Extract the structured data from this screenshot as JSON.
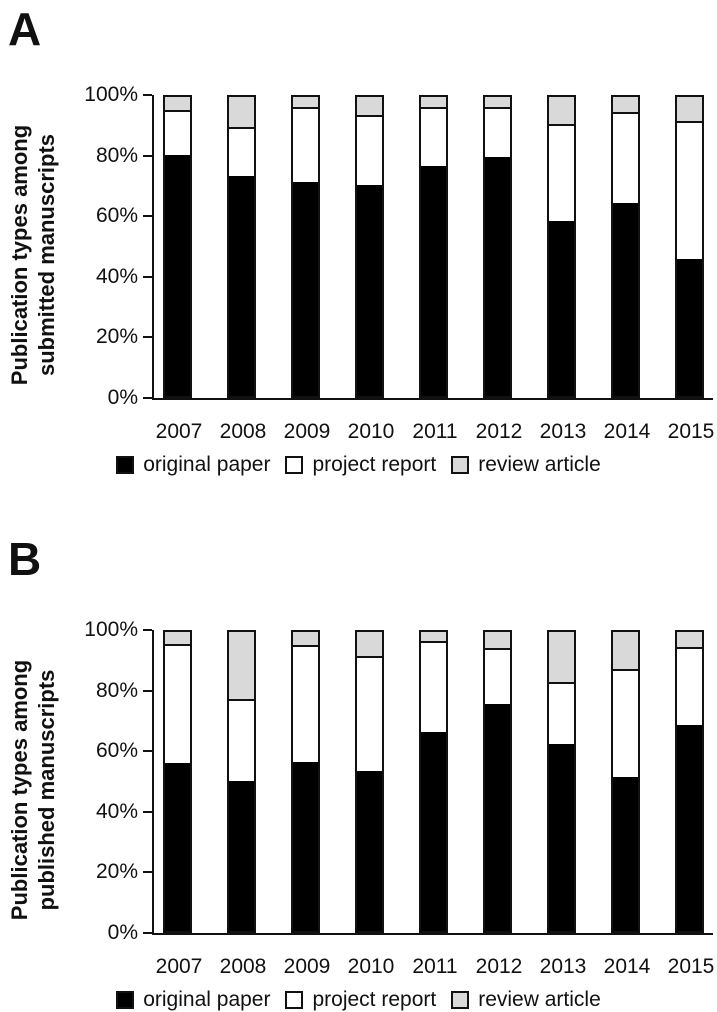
{
  "page": {
    "background": "#ffffff"
  },
  "colors": {
    "black_series": "#000000",
    "white_series": "#ffffff",
    "gray_series": "#d9d9d9",
    "axis": "#111111"
  },
  "figure": {
    "panels": [
      {
        "letter": "A",
        "ylabel_lines": [
          "Publication types among",
          "submitted manuscripts"
        ]
      },
      {
        "letter": "B",
        "ylabel_lines": [
          "Publication types among",
          "published manuscripts"
        ]
      }
    ]
  },
  "legend": {
    "items": [
      {
        "label": "original paper",
        "color": "#000000"
      },
      {
        "label": "project report",
        "color": "#ffffff"
      },
      {
        "label": "review article",
        "color": "#d9d9d9"
      }
    ]
  },
  "chart_data": [
    {
      "panel": "A",
      "type": "bar",
      "stacked": true,
      "unit": "%",
      "title": "",
      "xlabel": "",
      "ylabel": "Publication types among submitted manuscripts",
      "ylim": [
        0,
        100
      ],
      "yticks": [
        0,
        20,
        40,
        60,
        80,
        100
      ],
      "ytick_labels": [
        "0%",
        "20%",
        "40%",
        "60%",
        "80%",
        "100%"
      ],
      "categories": [
        "2007",
        "2008",
        "2009",
        "2010",
        "2011",
        "2012",
        "2013",
        "2014",
        "2015"
      ],
      "series": [
        {
          "name": "original paper",
          "color": "#000000",
          "values": [
            81,
            74,
            72,
            71,
            77.5,
            80.5,
            59,
            65,
            46
          ]
        },
        {
          "name": "project report",
          "color": "#ffffff",
          "values": [
            14.5,
            16,
            24.5,
            23,
            19,
            16,
            32,
            30,
            46
          ]
        },
        {
          "name": "review article",
          "color": "#d9d9d9",
          "values": [
            4.5,
            10,
            3.5,
            6,
            3.5,
            3.5,
            9,
            5,
            8
          ]
        }
      ],
      "legend_position": "bottom",
      "grid": false
    },
    {
      "panel": "B",
      "type": "bar",
      "stacked": true,
      "unit": "%",
      "title": "",
      "xlabel": "",
      "ylabel": "Publication types among published manuscripts",
      "ylim": [
        0,
        100
      ],
      "yticks": [
        0,
        20,
        40,
        60,
        80,
        100
      ],
      "ytick_labels": [
        "0%",
        "20%",
        "40%",
        "60%",
        "80%",
        "100%"
      ],
      "categories": [
        "2007",
        "2008",
        "2009",
        "2010",
        "2011",
        "2012",
        "2013",
        "2014",
        "2015"
      ],
      "series": [
        {
          "name": "original paper",
          "color": "#000000",
          "values": [
            56.5,
            50.5,
            57,
            54,
            67,
            76.5,
            63,
            52,
            69.5
          ]
        },
        {
          "name": "project report",
          "color": "#ffffff",
          "values": [
            39.5,
            27,
            38.5,
            38,
            30,
            18,
            20,
            35.5,
            25.5
          ]
        },
        {
          "name": "review article",
          "color": "#d9d9d9",
          "values": [
            4,
            22.5,
            4.5,
            8,
            3,
            5.5,
            17,
            12.5,
            5
          ]
        }
      ],
      "legend_position": "bottom",
      "grid": false
    }
  ]
}
